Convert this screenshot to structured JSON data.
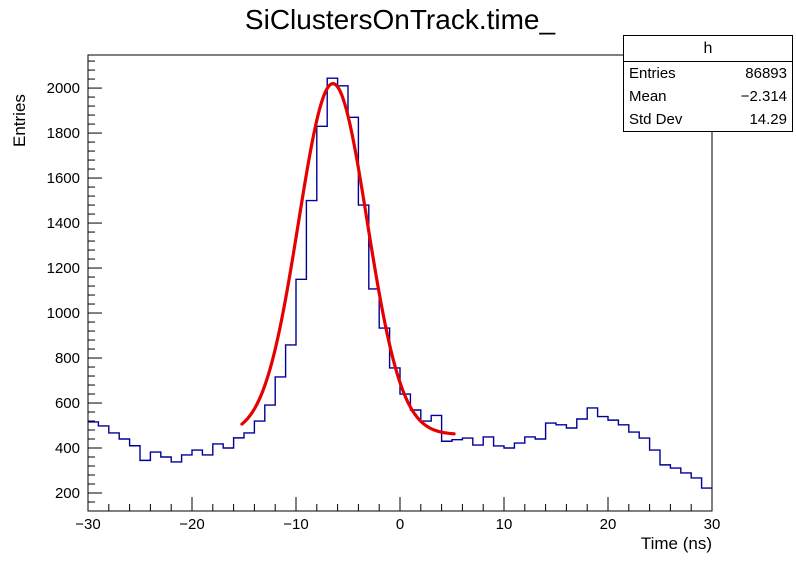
{
  "chart_data": {
    "type": "bar",
    "subtype": "histogram-step-with-fit",
    "title": "SiClustersOnTrack.time_",
    "xlabel": "Time (ns)",
    "ylabel": "Entries",
    "xlim": [
      -30,
      30
    ],
    "ylim": [
      120,
      2147
    ],
    "grid": false,
    "legend": "none",
    "bin_width": 1,
    "bin_start": -30,
    "bin_values": [
      516,
      498,
      467,
      440,
      410,
      345,
      382,
      360,
      338,
      369,
      391,
      369,
      418,
      400,
      445,
      467,
      520,
      591,
      716,
      858,
      1150,
      1500,
      1830,
      2044,
      2010,
      1870,
      1480,
      1107,
      933,
      756,
      640,
      569,
      520,
      545,
      430,
      437,
      444,
      413,
      449,
      409,
      400,
      422,
      449,
      440,
      511,
      503,
      489,
      529,
      578,
      540,
      524,
      503,
      471,
      444,
      391,
      325,
      311,
      289,
      267,
      222
    ],
    "x_ticks": [
      {
        "v": -30,
        "label": "−30"
      },
      {
        "v": -20,
        "label": "−20"
      },
      {
        "v": -10,
        "label": "−10"
      },
      {
        "v": 0,
        "label": "0"
      },
      {
        "v": 10,
        "label": "10"
      },
      {
        "v": 20,
        "label": "20"
      },
      {
        "v": 30,
        "label": "30"
      }
    ],
    "x_minor_step": 2,
    "y_ticks": [
      {
        "v": 200,
        "label": "200"
      },
      {
        "v": 400,
        "label": "400"
      },
      {
        "v": 600,
        "label": "600"
      },
      {
        "v": 800,
        "label": "800"
      },
      {
        "v": 1000,
        "label": "1000"
      },
      {
        "v": 1200,
        "label": "1200"
      },
      {
        "v": 1400,
        "label": "1400"
      },
      {
        "v": 1600,
        "label": "1600"
      },
      {
        "v": 1800,
        "label": "1800"
      },
      {
        "v": 2000,
        "label": "2000"
      }
    ],
    "y_minor_step": 40,
    "hist_color": "#00009a",
    "fit_color": "#e60000",
    "fit": {
      "type": "gaussian_plus_constant",
      "constant": 460,
      "amplitude": 1560,
      "mean": -6.45,
      "sigma": 3.3,
      "range": [
        -15.2,
        5.3
      ]
    }
  },
  "stats_box": {
    "title": "h",
    "rows": [
      {
        "label": "Entries",
        "value": "86893"
      },
      {
        "label": "Mean",
        "value": "−2.314"
      },
      {
        "label": "Std Dev",
        "value": "14.29"
      }
    ]
  }
}
